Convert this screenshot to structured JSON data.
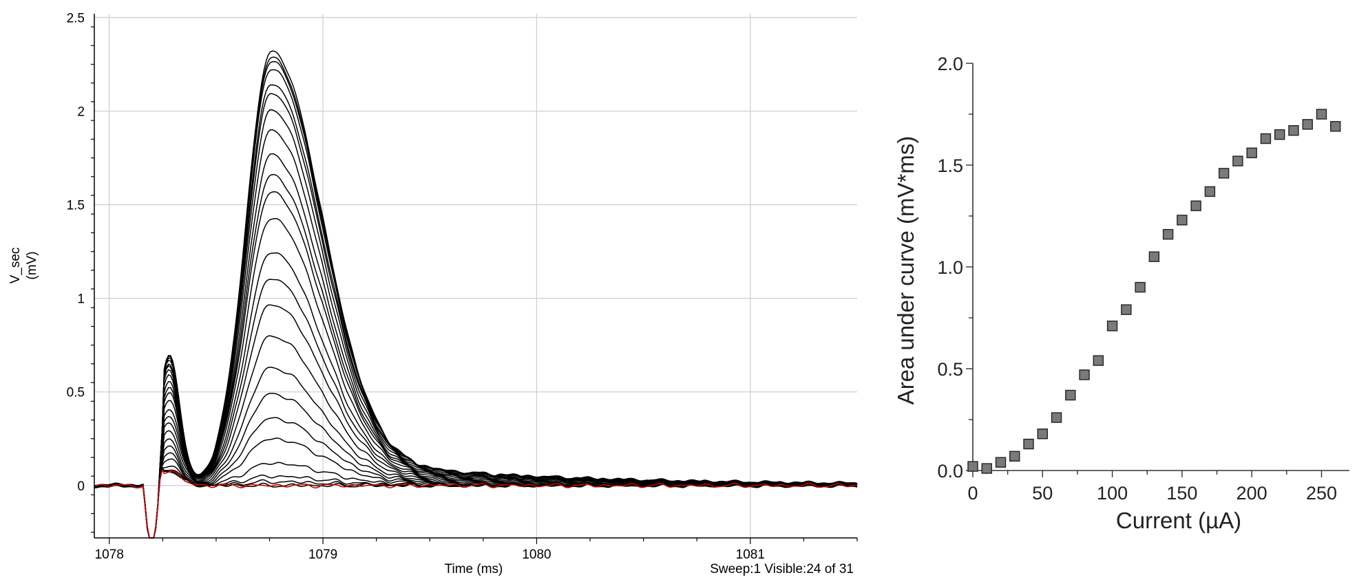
{
  "chart_data": [
    {
      "type": "line",
      "xlabel": "Time (ms)",
      "ylabel": "V_sec",
      "ylabel_unit": "(mV)",
      "status": "Sweep:1 Visible:24 of 31",
      "xlim": [
        1077.93,
        1081.5
      ],
      "ylim": [
        -0.28,
        2.52
      ],
      "x_ticks": [
        "1078",
        "1079",
        "1080",
        "1081"
      ],
      "x_tick_values": [
        1078,
        1079,
        1080,
        1081
      ],
      "y_ticks": [
        "0",
        "0.5",
        "1",
        "1.5",
        "2",
        "2.5"
      ],
      "y_tick_values": [
        0,
        0.5,
        1,
        1.5,
        2,
        2.5
      ],
      "grid": true,
      "trace_color": "#000000",
      "highlight_color": "#cc0000",
      "peak_amplitudes": [
        0.0,
        0.02,
        0.05,
        0.12,
        0.25,
        0.36,
        0.49,
        0.63,
        0.8,
        0.97,
        1.11,
        1.25,
        1.43,
        1.57,
        1.66,
        1.77,
        1.9,
        2.01,
        2.1,
        2.15,
        2.23,
        2.27,
        2.29,
        2.32
      ],
      "highlight_peak": 0.0
    },
    {
      "type": "scatter",
      "xlabel": "Current (µA)",
      "ylabel": "Area under curve (mV*ms)",
      "xlim": [
        0,
        270
      ],
      "ylim": [
        0,
        2.0
      ],
      "x_ticks": [
        "0",
        "50",
        "100",
        "150",
        "200",
        "250"
      ],
      "x_tick_values": [
        0,
        50,
        100,
        150,
        200,
        250
      ],
      "y_ticks": [
        "0.0",
        "0.5",
        "1.0",
        "1.5",
        "2.0"
      ],
      "y_tick_values": [
        0,
        0.5,
        1.0,
        1.5,
        2.0
      ],
      "marker_color": "#7a7a7a",
      "x": [
        0,
        10,
        20,
        30,
        40,
        50,
        60,
        70,
        80,
        90,
        100,
        110,
        120,
        130,
        140,
        150,
        160,
        170,
        180,
        190,
        200,
        210,
        220,
        230,
        240,
        250,
        260
      ],
      "y": [
        0.02,
        0.01,
        0.04,
        0.07,
        0.13,
        0.18,
        0.26,
        0.37,
        0.47,
        0.54,
        0.71,
        0.79,
        0.9,
        1.05,
        1.16,
        1.23,
        1.3,
        1.37,
        1.46,
        1.52,
        1.56,
        1.63,
        1.65,
        1.67,
        1.7,
        1.75,
        1.69
      ]
    }
  ]
}
